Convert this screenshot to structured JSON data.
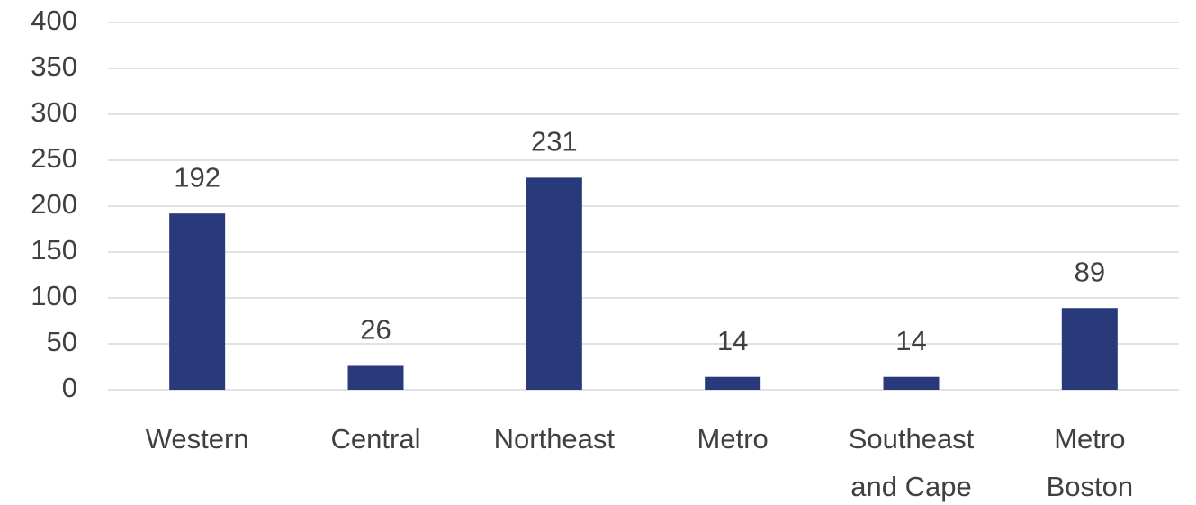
{
  "chart_data": {
    "type": "bar",
    "categories": [
      "Western",
      "Central",
      "Northeast",
      "Metro",
      "Southeast and Cape",
      "Metro Boston"
    ],
    "values": [
      192,
      26,
      231,
      14,
      14,
      89
    ],
    "color": "#283a7a",
    "ylim": [
      0,
      400
    ],
    "yticks": [
      0,
      50,
      100,
      150,
      200,
      250,
      300,
      350,
      400
    ],
    "grid": true,
    "data_labels": true
  }
}
